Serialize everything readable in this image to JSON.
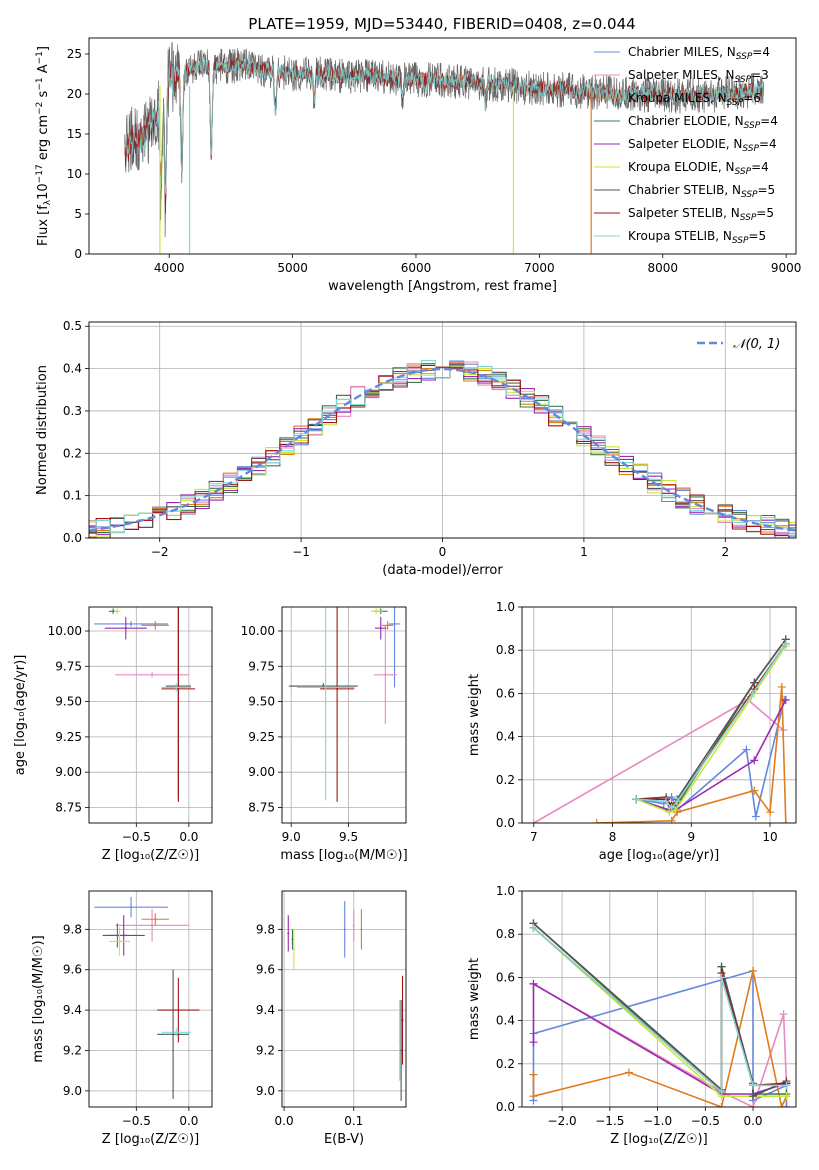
{
  "figure": {
    "title": "PLATE=1959, MJD=53440, FIBERID=0408, z=0.044"
  },
  "colors": {
    "Chabrier MILES": "#6488e0",
    "Salpeter MILES": "#e88ac2",
    "Kroupa MILES": "#e07b1e",
    "Chabrier ELODIE": "#3f7a4f",
    "Salpeter ELODIE": "#9a2ab0",
    "Kroupa ELODIE": "#c9e83a",
    "Chabrier STELIB": "#555555",
    "Salpeter STELIB": "#a01414",
    "Kroupa STELIB": "#7fd7d8"
  },
  "chart_data": [
    {
      "id": "spectrum",
      "type": "line",
      "xlabel": "wavelength [Angstrom, rest frame]",
      "ylabel_parts": [
        "Flux [f",
        "λ",
        "10",
        "−17",
        " erg cm",
        "−2",
        " s",
        "−1",
        " A",
        "−1",
        "]"
      ],
      "xlim": [
        3350,
        9080
      ],
      "ylim": [
        0,
        27
      ],
      "xticks": [
        4000,
        5000,
        6000,
        7000,
        8000,
        9000
      ],
      "yticks": [
        0,
        5,
        10,
        15,
        20,
        25
      ],
      "grid": false,
      "legend": {
        "placement": "top-right",
        "entries": [
          {
            "name": "Chabrier MILES",
            "nssp": "4"
          },
          {
            "name": "Salpeter MILES",
            "nssp": "3"
          },
          {
            "name": "Kroupa MILES",
            "nssp": "6"
          },
          {
            "name": "Chabrier ELODIE",
            "nssp": "4"
          },
          {
            "name": "Salpeter ELODIE",
            "nssp": "4"
          },
          {
            "name": "Kroupa ELODIE",
            "nssp": "4"
          },
          {
            "name": "Chabrier STELIB",
            "nssp": "5"
          },
          {
            "name": "Salpeter STELIB",
            "nssp": "5"
          },
          {
            "name": "Kroupa STELIB",
            "nssp": "5"
          }
        ]
      },
      "envelope": [
        [
          3640,
          13
        ],
        [
          3700,
          14
        ],
        [
          3800,
          15
        ],
        [
          3900,
          17
        ],
        [
          4000,
          22
        ],
        [
          4100,
          22.5
        ],
        [
          4200,
          23.3
        ],
        [
          4400,
          23.5
        ],
        [
          4600,
          23.5
        ],
        [
          4800,
          23
        ],
        [
          5000,
          22.5
        ],
        [
          5200,
          22.5
        ],
        [
          5400,
          22.3
        ],
        [
          5600,
          22.2
        ],
        [
          5800,
          22
        ],
        [
          6000,
          21.8
        ],
        [
          6200,
          21.7
        ],
        [
          6400,
          21.5
        ],
        [
          6600,
          21.3
        ],
        [
          6800,
          21
        ],
        [
          7000,
          20.7
        ],
        [
          7200,
          20.5
        ],
        [
          7400,
          20.3
        ],
        [
          7600,
          20
        ],
        [
          7800,
          19.9
        ],
        [
          8000,
          19.8
        ],
        [
          8200,
          19.7
        ],
        [
          8400,
          19.9
        ],
        [
          8600,
          20.2
        ],
        [
          8820,
          20.5
        ]
      ],
      "dips": [
        [
          3934,
          8
        ],
        [
          3969,
          6
        ],
        [
          4102,
          10
        ],
        [
          4341,
          12
        ],
        [
          4861,
          18
        ],
        [
          5175,
          19.5
        ],
        [
          5890,
          19.6
        ],
        [
          6563,
          18.6
        ]
      ],
      "model_drop_lines": [
        {
          "series": "Kroupa ELODIE",
          "x": 3925
        },
        {
          "series": "Kroupa STELIB",
          "x": 4165
        },
        {
          "series": "Kroupa ELODIE",
          "x": 6790
        },
        {
          "series": "Kroupa MILES",
          "x": 7420
        }
      ]
    },
    {
      "id": "residuals",
      "type": "histogram",
      "xlabel": "(data-model)/error",
      "ylabel": "Normed distribution",
      "xlim": [
        -2.5,
        2.5
      ],
      "ylim": [
        0,
        0.51
      ],
      "xticks": [
        -2,
        -1,
        0,
        1,
        2
      ],
      "yticks": [
        0.0,
        0.1,
        0.2,
        0.3,
        0.4,
        0.5
      ],
      "grid": true,
      "bin_width": 0.1,
      "legend": {
        "placement": "top-right",
        "label": "𝒩(0, 1)"
      },
      "reference_curve": {
        "name": "𝒩(0, 1)",
        "mean": 0,
        "sigma": 1,
        "color": "#6488e0"
      }
    },
    {
      "id": "age_vs_Z",
      "type": "scatter",
      "xlabel": "Z [log₁₀(Z/Z☉)]",
      "ylabel": "age  [log₁₀(age/yr)]",
      "xlim": [
        -0.95,
        0.22
      ],
      "ylim": [
        8.64,
        10.17
      ],
      "xticks": [
        -0.5,
        0.0
      ],
      "yticks": [
        8.75,
        9.0,
        9.25,
        9.5,
        9.75,
        10.0
      ],
      "grid": true,
      "points": [
        {
          "series": "Chabrier MILES",
          "x": -0.55,
          "y": 10.05,
          "xerr": 0.35,
          "yerr": 0.02
        },
        {
          "series": "Salpeter MILES",
          "x": -0.35,
          "y": 9.69,
          "xerr": 0.35,
          "yerr": 0.02
        },
        {
          "series": "Kroupa MILES",
          "x": -0.32,
          "y": 10.04,
          "xerr": 0.13,
          "yerr": 0.03
        },
        {
          "series": "Chabrier ELODIE",
          "x": -0.72,
          "y": 10.14,
          "xerr": 0.04,
          "yerr": 0.02
        },
        {
          "series": "Salpeter ELODIE",
          "x": -0.6,
          "y": 10.02,
          "xerr": 0.2,
          "yerr": 0.08
        },
        {
          "series": "Kroupa ELODIE",
          "x": -0.68,
          "y": 10.14,
          "xerr": 0.03,
          "yerr": 0.02
        },
        {
          "series": "Chabrier STELIB",
          "x": -0.1,
          "y": 9.61,
          "xerr": 0.12,
          "yerr": 0.8
        },
        {
          "series": "Salpeter STELIB",
          "x": -0.1,
          "y": 9.59,
          "xerr": 0.16,
          "yerr": 0.8
        },
        {
          "series": "Kroupa STELIB",
          "x": -0.12,
          "y": 9.6,
          "xerr": 0.14,
          "yerr": 0.03
        }
      ]
    },
    {
      "id": "age_vs_mass",
      "type": "scatter",
      "xlabel": "mass [log₁₀(M/M☉)]",
      "ylabel": "",
      "xlim": [
        8.92,
        10.0
      ],
      "ylim": [
        8.64,
        10.17
      ],
      "xticks": [
        9.0,
        9.5
      ],
      "yticks": [
        8.75,
        9.0,
        9.25,
        9.5,
        9.75,
        10.0
      ],
      "grid": true,
      "points": [
        {
          "series": "Chabrier MILES",
          "x": 9.9,
          "y": 10.05,
          "xerr": 0.05,
          "yerr": 0.45
        },
        {
          "series": "Salpeter MILES",
          "x": 9.82,
          "y": 9.69,
          "xerr": 0.1,
          "yerr": 0.35
        },
        {
          "series": "Kroupa MILES",
          "x": 9.84,
          "y": 10.04,
          "xerr": 0.05,
          "yerr": 0.03
        },
        {
          "series": "Chabrier ELODIE",
          "x": 9.78,
          "y": 10.14,
          "xerr": 0.06,
          "yerr": 0.02
        },
        {
          "series": "Salpeter ELODIE",
          "x": 9.78,
          "y": 10.02,
          "xerr": 0.05,
          "yerr": 0.08
        },
        {
          "series": "Kroupa ELODIE",
          "x": 9.74,
          "y": 10.14,
          "xerr": 0.05,
          "yerr": 0.02
        },
        {
          "series": "Chabrier STELIB",
          "x": 9.28,
          "y": 9.61,
          "xerr": 0.3,
          "yerr": 0.02
        },
        {
          "series": "Salpeter STELIB",
          "x": 9.4,
          "y": 9.59,
          "xerr": 0.15,
          "yerr": 0.8
        },
        {
          "series": "Kroupa STELIB",
          "x": 9.3,
          "y": 9.6,
          "xerr": 0.25,
          "yerr": 0.8
        }
      ]
    },
    {
      "id": "massweight_vs_age",
      "type": "line",
      "xlabel": "age  [log₁₀(age/yr)]",
      "ylabel": "mass weight",
      "xlim": [
        6.85,
        10.33
      ],
      "ylim": [
        0,
        1.0
      ],
      "xticks": [
        7,
        8,
        9,
        10
      ],
      "yticks": [
        0.0,
        0.2,
        0.4,
        0.6,
        0.8,
        1.0
      ],
      "grid": true,
      "series": [
        {
          "name": "Chabrier MILES",
          "x": [
            8.3,
            8.65,
            8.75,
            8.82,
            9.7,
            9.82,
            10.18
          ],
          "y": [
            0.11,
            0.09,
            0.12,
            0.06,
            0.34,
            0.03,
            0.57
          ]
        },
        {
          "name": "Salpeter MILES",
          "x": [
            7.0,
            9.72,
            10.17
          ],
          "y": [
            0.0,
            0.57,
            0.43
          ]
        },
        {
          "name": "Kroupa MILES",
          "x": [
            7.8,
            8.75,
            8.82,
            9.8,
            10.0,
            10.15,
            10.2
          ],
          "y": [
            0.0,
            0.01,
            0.05,
            0.15,
            0.05,
            0.63,
            0.0
          ]
        },
        {
          "name": "Chabrier ELODIE",
          "x": [
            8.3,
            8.72,
            8.8,
            9.8,
            10.2
          ],
          "y": [
            0.11,
            0.06,
            0.07,
            0.65,
            0.85
          ]
        },
        {
          "name": "Salpeter ELODIE",
          "x": [
            8.3,
            8.72,
            8.8,
            9.8,
            10.2
          ],
          "y": [
            0.11,
            0.06,
            0.06,
            0.29,
            0.57
          ]
        },
        {
          "name": "Kroupa ELODIE",
          "x": [
            8.3,
            8.72,
            8.8,
            9.8,
            10.2
          ],
          "y": [
            0.11,
            0.05,
            0.06,
            0.6,
            0.82
          ]
        },
        {
          "name": "Chabrier STELIB",
          "x": [
            8.3,
            8.68,
            8.75,
            8.82,
            9.8,
            10.2
          ],
          "y": [
            0.11,
            0.12,
            0.08,
            0.11,
            0.65,
            0.85
          ]
        },
        {
          "name": "Salpeter STELIB",
          "x": [
            8.3,
            8.68,
            8.75,
            8.82,
            9.8,
            10.2
          ],
          "y": [
            0.11,
            0.11,
            0.08,
            0.1,
            0.62,
            0.83
          ]
        },
        {
          "name": "Kroupa STELIB",
          "x": [
            8.3,
            8.68,
            8.75,
            8.82,
            9.78,
            10.2
          ],
          "y": [
            0.11,
            0.1,
            0.07,
            0.1,
            0.6,
            0.83
          ]
        }
      ]
    },
    {
      "id": "mass_vs_Z",
      "type": "scatter",
      "xlabel": "Z [log₁₀(Z/Z☉)]",
      "ylabel": "mass [log₁₀(M/M☉)]",
      "xlim": [
        -0.95,
        0.22
      ],
      "ylim": [
        8.92,
        9.99
      ],
      "xticks": [
        -0.5,
        0.0
      ],
      "yticks": [
        9.0,
        9.2,
        9.4,
        9.6,
        9.8
      ],
      "grid": true,
      "points": [
        {
          "series": "Chabrier MILES",
          "x": -0.55,
          "y": 9.91,
          "xerr": 0.35,
          "yerr": 0.05
        },
        {
          "series": "Salpeter MILES",
          "x": -0.35,
          "y": 9.82,
          "xerr": 0.35,
          "yerr": 0.08
        },
        {
          "series": "Kroupa MILES",
          "x": -0.32,
          "y": 9.85,
          "xerr": 0.13,
          "yerr": 0.03
        },
        {
          "series": "Chabrier ELODIE",
          "x": -0.68,
          "y": 9.77,
          "xerr": 0.1,
          "yerr": 0.06
        },
        {
          "series": "Salpeter ELODIE",
          "x": -0.62,
          "y": 9.77,
          "xerr": 0.2,
          "yerr": 0.1
        },
        {
          "series": "Kroupa ELODIE",
          "x": -0.66,
          "y": 9.74,
          "xerr": 0.1,
          "yerr": 0.07
        },
        {
          "series": "Chabrier STELIB",
          "x": -0.15,
          "y": 9.28,
          "xerr": 0.15,
          "yerr": 0.32
        },
        {
          "series": "Salpeter STELIB",
          "x": -0.1,
          "y": 9.4,
          "xerr": 0.2,
          "yerr": 0.16
        },
        {
          "series": "Kroupa STELIB",
          "x": -0.12,
          "y": 9.29,
          "xerr": 0.14,
          "yerr": 0.02
        }
      ]
    },
    {
      "id": "mass_vs_ebv",
      "type": "scatter",
      "xlabel": "E(B-V)",
      "ylabel": "",
      "xlim": [
        -0.003,
        0.175
      ],
      "ylim": [
        8.92,
        9.99
      ],
      "xticks": [
        0.0,
        0.1
      ],
      "yticks": [
        9.0,
        9.2,
        9.4,
        9.6,
        9.8
      ],
      "grid": true,
      "points": [
        {
          "series": "Chabrier MILES",
          "x": 0.087,
          "y": 9.8,
          "xerr": 0.0,
          "yerr": 0.14
        },
        {
          "series": "Salpeter MILES",
          "x": 0.1,
          "y": 9.82,
          "xerr": 0.0,
          "yerr": 0.08
        },
        {
          "series": "Kroupa MILES",
          "x": 0.111,
          "y": 9.8,
          "xerr": 0.0,
          "yerr": 0.1
        },
        {
          "series": "Chabrier ELODIE",
          "x": 0.012,
          "y": 9.75,
          "xerr": 0.0,
          "yerr": 0.05
        },
        {
          "series": "Salpeter ELODIE",
          "x": 0.006,
          "y": 9.78,
          "xerr": 0.0,
          "yerr": 0.09
        },
        {
          "series": "Kroupa ELODIE",
          "x": 0.014,
          "y": 9.7,
          "xerr": 0.0,
          "yerr": 0.1
        },
        {
          "series": "Chabrier STELIB",
          "x": 0.168,
          "y": 9.2,
          "xerr": 0.0,
          "yerr": 0.25
        },
        {
          "series": "Salpeter STELIB",
          "x": 0.17,
          "y": 9.35,
          "xerr": 0.0,
          "yerr": 0.22
        },
        {
          "series": "Kroupa STELIB",
          "x": 0.166,
          "y": 9.25,
          "xerr": 0.0,
          "yerr": 0.2
        }
      ]
    },
    {
      "id": "massweight_vs_Z",
      "type": "line",
      "xlabel": "Z [log₁₀(Z/Z☉)]",
      "ylabel": "mass weight",
      "xlim": [
        -2.42,
        0.45
      ],
      "ylim": [
        0,
        1.0
      ],
      "xticks": [
        -2.0,
        -1.5,
        -1.0,
        -0.5,
        0.0
      ],
      "yticks": [
        0.0,
        0.2,
        0.4,
        0.6,
        0.8,
        1.0
      ],
      "grid": true,
      "series": [
        {
          "name": "Chabrier MILES",
          "x": [
            -2.3,
            -2.3,
            0.0,
            0.0,
            0.35,
            0.35
          ],
          "y": [
            0.03,
            0.34,
            0.63,
            0.03,
            0.1,
            0.0
          ]
        },
        {
          "name": "Salpeter MILES",
          "x": [
            -2.3,
            -0.33,
            0.0,
            0.32,
            0.35
          ],
          "y": [
            0.57,
            0.07,
            0.0,
            0.43,
            0.1
          ]
        },
        {
          "name": "Kroupa MILES",
          "x": [
            -2.3,
            -2.3,
            -1.3,
            -0.33,
            0.0,
            0.3,
            0.35
          ],
          "y": [
            0.15,
            0.05,
            0.16,
            0.0,
            0.63,
            0.0,
            0.05
          ]
        },
        {
          "name": "Chabrier ELODIE",
          "x": [
            -2.3,
            -0.33,
            -0.33,
            0.0,
            0.0,
            0.35
          ],
          "y": [
            0.85,
            0.07,
            0.65,
            0.1,
            0.06,
            0.06
          ]
        },
        {
          "name": "Salpeter ELODIE",
          "x": [
            -2.3,
            -2.3,
            -0.33,
            0.0,
            0.35
          ],
          "y": [
            0.3,
            0.57,
            0.06,
            0.06,
            0.11
          ]
        },
        {
          "name": "Kroupa ELODIE",
          "x": [
            -2.3,
            -0.33,
            0.0,
            0.35
          ],
          "y": [
            0.83,
            0.05,
            0.05,
            0.05
          ]
        },
        {
          "name": "Chabrier STELIB",
          "x": [
            -2.3,
            -0.33,
            -0.33,
            0.0,
            0.0,
            0.35
          ],
          "y": [
            0.85,
            0.08,
            0.65,
            0.11,
            0.05,
            0.12
          ]
        },
        {
          "name": "Salpeter STELIB",
          "x": [
            -2.3,
            -0.33,
            -0.33,
            0.0,
            0.35
          ],
          "y": [
            0.83,
            0.07,
            0.62,
            0.1,
            0.11
          ]
        },
        {
          "name": "Kroupa STELIB",
          "x": [
            -2.3,
            -0.33,
            -0.33,
            0.0,
            0.35
          ],
          "y": [
            0.83,
            0.07,
            0.6,
            0.1,
            0.1
          ]
        }
      ]
    }
  ]
}
